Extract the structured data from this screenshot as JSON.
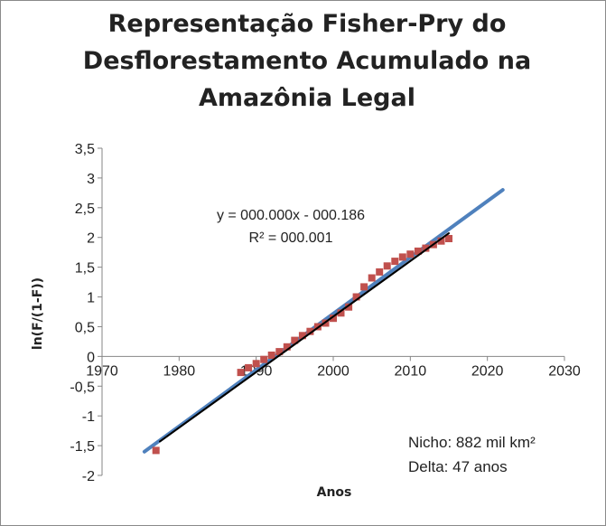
{
  "chart_data": {
    "type": "scatter",
    "title": "Representação Fisher-Pry do Desflorestamento Acumulado na Amazônia Legal",
    "xlabel": "Anos",
    "ylabel": "ln(F/(1-F))",
    "xlim": [
      1970,
      2030
    ],
    "ylim": [
      -2,
      3.5
    ],
    "x_ticks": [
      "1970",
      "1980",
      "1990",
      "2000",
      "2010",
      "2020",
      "2030"
    ],
    "y_ticks": [
      "-2",
      "-1,5",
      "-1",
      "-0,5",
      "0",
      "0,5",
      "1",
      "1,5",
      "2",
      "2,5",
      "3",
      "3,5"
    ],
    "grid": false,
    "series": [
      {
        "type": "scatter",
        "color": "#c0504d",
        "points": [
          [
            1977,
            -1.58
          ],
          [
            1988,
            -0.27
          ],
          [
            1989,
            -0.19
          ],
          [
            1990,
            -0.12
          ],
          [
            1991,
            -0.05
          ],
          [
            1992,
            0.02
          ],
          [
            1993,
            0.08
          ],
          [
            1994,
            0.16
          ],
          [
            1995,
            0.27
          ],
          [
            1996,
            0.35
          ],
          [
            1997,
            0.42
          ],
          [
            1998,
            0.5
          ],
          [
            1999,
            0.56
          ],
          [
            2000,
            0.64
          ],
          [
            2001,
            0.73
          ],
          [
            2002,
            0.83
          ],
          [
            2003,
            1.0
          ],
          [
            2004,
            1.17
          ],
          [
            2005,
            1.32
          ],
          [
            2006,
            1.42
          ],
          [
            2007,
            1.52
          ],
          [
            2008,
            1.6
          ],
          [
            2009,
            1.67
          ],
          [
            2010,
            1.72
          ],
          [
            2011,
            1.77
          ],
          [
            2012,
            1.82
          ],
          [
            2013,
            1.88
          ],
          [
            2014,
            1.94
          ],
          [
            2015,
            1.98
          ]
        ]
      },
      {
        "type": "line",
        "color": "#4f81bd",
        "points": [
          [
            1975.5,
            -1.6
          ],
          [
            2022,
            2.8
          ]
        ]
      },
      {
        "type": "line",
        "color": "#000000",
        "points": [
          [
            1977.5,
            -1.43
          ],
          [
            2015,
            2.07
          ]
        ]
      }
    ],
    "trendline_equation": "y = 000.000x - 000.186",
    "trendline_r2": "R² = 000.001",
    "annotations": [
      "Nicho: 882 mil km²",
      "Delta: 47 anos"
    ]
  }
}
